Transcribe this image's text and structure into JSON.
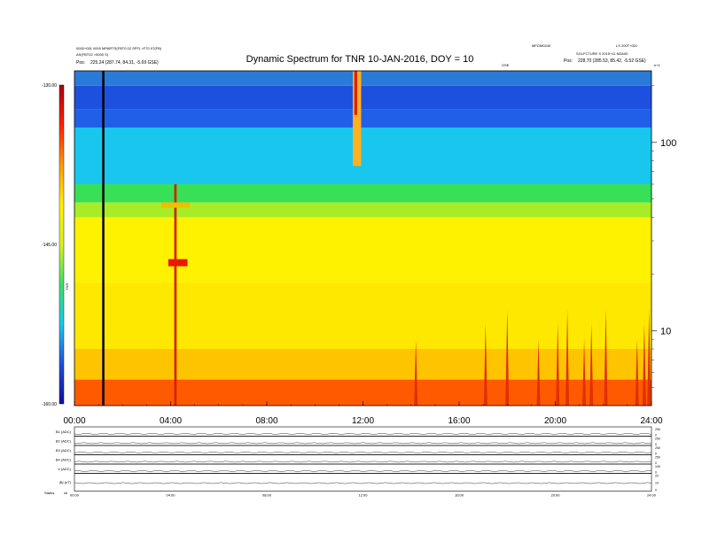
{
  "chart_data": {
    "type": "heatmap",
    "title": "Dynamic Spectrum for TNR 10-JAN-2016, DOY = 10",
    "header": {
      "left_line1": "0000+051 0000 MPARTS(FBT0 02 SPF) >FT0 07(FB)",
      "left_line2": "AS(FBT02 >5000 S)",
      "left_pos_label": "Pos:",
      "left_pos_value": "225.24 (287.74, 84.31, -5.69 GSE)",
      "right_line1": "MFGM0240",
      "right_line2": "LS 200T+001",
      "right_line3": "SGLFCTURE S 2015+11 M2A00",
      "right_pos_label": "Pos:",
      "right_pos_value": "228.70 (285.53, 85.42, -5.52 GSE)",
      "corner_label": "e+1",
      "mid_label": "GSE"
    },
    "x": {
      "ticks": [
        "00:00",
        "04:00",
        "08:00",
        "12:00",
        "16:00",
        "20:00",
        "24:00"
      ],
      "range_hours": [
        0,
        24
      ]
    },
    "y_right": {
      "scale": "log",
      "ticks": [
        "100",
        "10"
      ],
      "range_khz": [
        4,
        240
      ]
    },
    "colorbar": {
      "ticks": [
        "-130.00",
        "-145.00",
        "-160.00"
      ],
      "range_db": [
        -160,
        -130
      ],
      "label": "TNR",
      "colors": [
        "#1010a0",
        "#1e4fe0",
        "#18c8ee",
        "#3ae06a",
        "#d8f020",
        "#fff000",
        "#ff9a00",
        "#ff2000",
        "#b00000"
      ]
    },
    "features": {
      "black_line_time_hours": 1.2,
      "background_bands": [
        {
          "f_from": 200,
          "f_to": 240,
          "color": "#2a7ad8"
        },
        {
          "f_from": 150,
          "f_to": 200,
          "color": "#1e50e0"
        },
        {
          "f_from": 120,
          "f_to": 150,
          "color": "#2060e8"
        },
        {
          "f_from": 60,
          "f_to": 120,
          "color": "#18c6ee"
        },
        {
          "f_from": 48,
          "f_to": 60,
          "color": "#38e058"
        },
        {
          "f_from": 40,
          "f_to": 48,
          "color": "#a8ec28"
        },
        {
          "f_from": 18,
          "f_to": 40,
          "color": "#fff200"
        },
        {
          "f_from": 8,
          "f_to": 18,
          "color": "#ffe800"
        },
        {
          "f_from": 5.5,
          "f_to": 8,
          "color": "#ffc400"
        },
        {
          "f_from": 4,
          "f_to": 5.5,
          "color": "#ff5a00"
        }
      ],
      "bursts": [
        {
          "t": 11.75,
          "f_from": 75,
          "f_to": 240,
          "w": 0.35,
          "color": "#ffb020"
        },
        {
          "t": 11.7,
          "f_from": 140,
          "f_to": 240,
          "w": 0.12,
          "color": "#e02010"
        },
        {
          "t": 4.2,
          "f_from": 4,
          "f_to": 60,
          "w": 0.1,
          "color": "#d82000"
        },
        {
          "t": 4.3,
          "f_from": 22,
          "f_to": 24,
          "w": 0.8,
          "color": "#e81800"
        },
        {
          "t": 4.2,
          "f_from": 45,
          "f_to": 48,
          "w": 1.2,
          "color": "#f0c000"
        }
      ],
      "red_spikes": [
        14.2,
        17.1,
        18.0,
        19.3,
        20.1,
        20.5,
        21.2,
        21.5,
        22.1,
        23.4,
        23.7,
        23.9
      ]
    },
    "panels": [
      {
        "label": "B1 (ADC)",
        "right_ticks": [
          "250",
          "0"
        ]
      },
      {
        "label": "B2 (ADC)",
        "right_ticks": [
          "250",
          "0"
        ]
      },
      {
        "label": "B3 (ADC)",
        "right_ticks": [
          "250",
          "0"
        ]
      },
      {
        "label": "B4 (ADC)",
        "right_ticks": [
          "250",
          "0"
        ]
      },
      {
        "label": "V (ADC)",
        "right_ticks": [
          "100",
          "0"
        ]
      },
      {
        "label": "|B| (nT)",
        "right_ticks": [
          "20",
          "10",
          "0"
        ]
      }
    ],
    "bottom_x_ticks": [
      "00:00",
      "04:00",
      "08:00",
      "12:00",
      "16:00",
      "20:00",
      "24:00"
    ],
    "status_label": "Status",
    "status_value": "ok"
  }
}
